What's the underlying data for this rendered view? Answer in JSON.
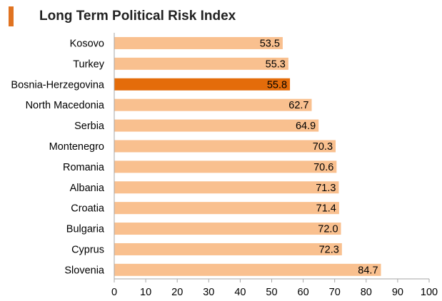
{
  "chart_data": {
    "type": "bar",
    "orientation": "horizontal",
    "title": "Long Term Political Risk Index",
    "categories": [
      "Kosovo",
      "Turkey",
      "Bosnia-Herzegovina",
      "North Macedonia",
      "Serbia",
      "Montenegro",
      "Romania",
      "Albania",
      "Croatia",
      "Bulgaria",
      "Cyprus",
      "Slovenia"
    ],
    "values": [
      53.5,
      55.3,
      55.8,
      62.7,
      64.9,
      70.3,
      70.6,
      71.3,
      71.4,
      72.0,
      72.3,
      84.7
    ],
    "value_labels": [
      "53.5",
      "55.3",
      "55.8",
      "62.7",
      "64.9",
      "70.3",
      "70.6",
      "71.3",
      "71.4",
      "72.0",
      "72.3",
      "84.7"
    ],
    "highlight": "Bosnia-Herzegovina",
    "xlim": [
      0,
      100
    ],
    "xticks": [
      "0",
      "10",
      "20",
      "30",
      "40",
      "50",
      "60",
      "70",
      "80",
      "90",
      "100"
    ],
    "xlabel": "",
    "ylabel": "",
    "grid": false,
    "colors": {
      "bar": "#F9C08F",
      "highlight_bar": "#E46C0A",
      "title_marker": "#E07321",
      "axis": "#A6A6A6"
    }
  }
}
